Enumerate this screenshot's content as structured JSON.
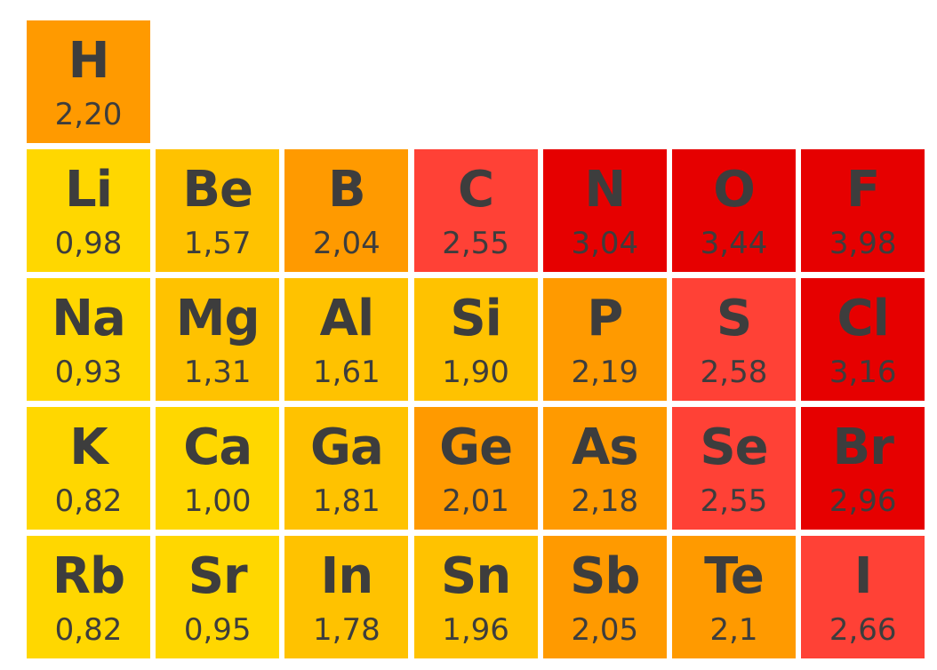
{
  "rows": [
    [
      {
        "symbol": "H",
        "value": "2,20",
        "color": "#ff9a00"
      }
    ],
    [
      {
        "symbol": "Li",
        "value": "0,98",
        "color": "#ffd700"
      },
      {
        "symbol": "Be",
        "value": "1,57",
        "color": "#ffc200"
      },
      {
        "symbol": "B",
        "value": "2,04",
        "color": "#ff9a00"
      },
      {
        "symbol": "C",
        "value": "2,55",
        "color": "#ff4136"
      },
      {
        "symbol": "N",
        "value": "3,04",
        "color": "#e60000"
      },
      {
        "symbol": "O",
        "value": "3,44",
        "color": "#e60000"
      },
      {
        "symbol": "F",
        "value": "3,98",
        "color": "#e60000"
      }
    ],
    [
      {
        "symbol": "Na",
        "value": "0,93",
        "color": "#ffd700"
      },
      {
        "symbol": "Mg",
        "value": "1,31",
        "color": "#ffc200"
      },
      {
        "symbol": "Al",
        "value": "1,61",
        "color": "#ffc200"
      },
      {
        "symbol": "Si",
        "value": "1,90",
        "color": "#ffc200"
      },
      {
        "symbol": "P",
        "value": "2,19",
        "color": "#ff9a00"
      },
      {
        "symbol": "S",
        "value": "2,58",
        "color": "#ff4136"
      },
      {
        "symbol": "Cl",
        "value": "3,16",
        "color": "#e60000"
      }
    ],
    [
      {
        "symbol": "K",
        "value": "0,82",
        "color": "#ffd700"
      },
      {
        "symbol": "Ca",
        "value": "1,00",
        "color": "#ffd700"
      },
      {
        "symbol": "Ga",
        "value": "1,81",
        "color": "#ffc200"
      },
      {
        "symbol": "Ge",
        "value": "2,01",
        "color": "#ff9a00"
      },
      {
        "symbol": "As",
        "value": "2,18",
        "color": "#ff9a00"
      },
      {
        "symbol": "Se",
        "value": "2,55",
        "color": "#ff4136"
      },
      {
        "symbol": "Br",
        "value": "2,96",
        "color": "#e60000"
      }
    ],
    [
      {
        "symbol": "Rb",
        "value": "0,82",
        "color": "#ffd700"
      },
      {
        "symbol": "Sr",
        "value": "0,95",
        "color": "#ffd700"
      },
      {
        "symbol": "In",
        "value": "1,78",
        "color": "#ffc200"
      },
      {
        "symbol": "Sn",
        "value": "1,96",
        "color": "#ffc200"
      },
      {
        "symbol": "Sb",
        "value": "2,05",
        "color": "#ff9a00"
      },
      {
        "symbol": "Te",
        "value": "2,1",
        "color": "#ff9a00"
      },
      {
        "symbol": "I",
        "value": "2,66",
        "color": "#ff4136"
      }
    ]
  ]
}
